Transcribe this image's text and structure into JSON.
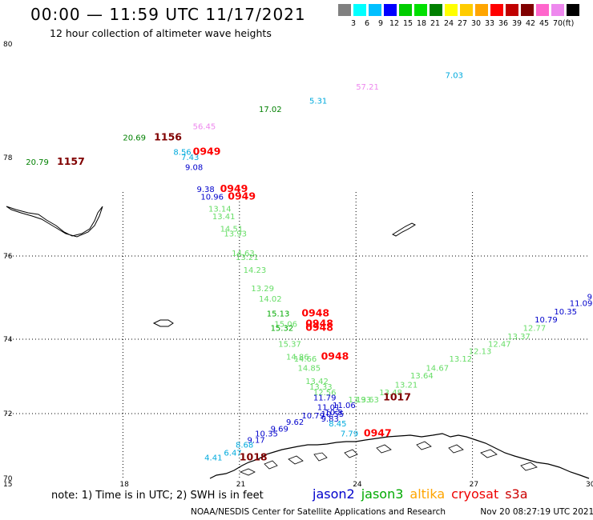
{
  "title": "00:00 — 11:59 UTC 11/17/2021",
  "subtitle": "12 hour collection of altimeter wave heights",
  "color_scale": {
    "labels": [
      "3",
      "6",
      "9",
      "12",
      "15",
      "18",
      "21",
      "24",
      "27",
      "30",
      "33",
      "36",
      "39",
      "42",
      "45",
      "70"
    ],
    "unit": "(ft)",
    "colors": [
      "#808080",
      "#00ffff",
      "#00bfff",
      "#0000ff",
      "#00cc00",
      "#00e000",
      "#008000",
      "#ffff00",
      "#ffcc00",
      "#ffa500",
      "#ff0000",
      "#c00000",
      "#800000",
      "#ff66cc",
      "#ee88ee",
      "#000000"
    ]
  },
  "axes": {
    "lon_labels": [
      "15",
      "18",
      "21",
      "24",
      "27",
      "30"
    ],
    "lat_labels": [
      "80",
      "78",
      "76",
      "74",
      "72",
      "70"
    ]
  },
  "observations": [
    {
      "text": "7.03",
      "color": "#00aadd",
      "lon": 26.3,
      "lat": 79.4
    },
    {
      "text": "57.21",
      "color": "#ee88ee",
      "lon": 24.0,
      "lat": 79.2
    },
    {
      "text": "5.31",
      "color": "#00aadd",
      "lon": 22.8,
      "lat": 78.95
    },
    {
      "text": "17.02",
      "color": "#008000",
      "lon": 21.5,
      "lat": 78.8
    },
    {
      "text": "56.45",
      "color": "#ee88ee",
      "lon": 19.8,
      "lat": 78.5
    },
    {
      "text": "20.69",
      "color": "#008000",
      "lon": 18.0,
      "lat": 78.3
    },
    {
      "text": "8.56",
      "color": "#00aadd",
      "lon": 19.3,
      "lat": 78.05
    },
    {
      "text": "7.43",
      "color": "#00aadd",
      "lon": 19.5,
      "lat": 77.95
    },
    {
      "text": "20.79",
      "color": "#008000",
      "lon": 15.5,
      "lat": 77.85
    },
    {
      "text": "9.08",
      "color": "#0000cc",
      "lon": 19.6,
      "lat": 77.75
    },
    {
      "text": "9.38",
      "color": "#0000cc",
      "lon": 19.9,
      "lat": 77.3
    },
    {
      "text": "10.96",
      "color": "#0000cc",
      "lon": 20.0,
      "lat": 77.15
    },
    {
      "text": "13.14",
      "color": "#66dd66",
      "lon": 20.2,
      "lat": 76.9
    },
    {
      "text": "13.41",
      "color": "#66dd66",
      "lon": 20.3,
      "lat": 76.75
    },
    {
      "text": "14.51",
      "color": "#66dd66",
      "lon": 20.5,
      "lat": 76.5
    },
    {
      "text": "13.93",
      "color": "#66dd66",
      "lon": 20.6,
      "lat": 76.4
    },
    {
      "text": "14.63",
      "color": "#66dd66",
      "lon": 20.8,
      "lat": 76.0
    },
    {
      "text": "13.21",
      "color": "#66dd66",
      "lon": 20.9,
      "lat": 75.9
    },
    {
      "text": "14.23",
      "color": "#66dd66",
      "lon": 21.1,
      "lat": 75.6
    },
    {
      "text": "13.29",
      "color": "#66dd66",
      "lon": 21.3,
      "lat": 75.15
    },
    {
      "text": "14.02",
      "color": "#66dd66",
      "lon": 21.5,
      "lat": 74.9
    },
    {
      "text": "15.13",
      "color": "#00aa00",
      "lon": 21.7,
      "lat": 74.55
    },
    {
      "text": "15.06",
      "color": "#66dd66",
      "lon": 21.9,
      "lat": 74.3
    },
    {
      "text": "15.32",
      "color": "#00aa00",
      "lon": 21.8,
      "lat": 74.2
    },
    {
      "text": "15.37",
      "color": "#66dd66",
      "lon": 22.0,
      "lat": 73.8
    },
    {
      "text": "14.86",
      "color": "#66dd66",
      "lon": 22.2,
      "lat": 73.45
    },
    {
      "text": "14.66",
      "color": "#66dd66",
      "lon": 22.4,
      "lat": 73.4
    },
    {
      "text": "14.85",
      "color": "#66dd66",
      "lon": 22.5,
      "lat": 73.15
    },
    {
      "text": "13.42",
      "color": "#66dd66",
      "lon": 22.7,
      "lat": 72.8
    },
    {
      "text": "13.33",
      "color": "#66dd66",
      "lon": 22.8,
      "lat": 72.65
    },
    {
      "text": "12.56",
      "color": "#66dd66",
      "lon": 22.9,
      "lat": 72.5
    },
    {
      "text": "11.79",
      "color": "#0000cc",
      "lon": 22.9,
      "lat": 72.35
    },
    {
      "text": "11.01",
      "color": "#0000cc",
      "lon": 23.0,
      "lat": 72.1
    },
    {
      "text": "11.06",
      "color": "#0000cc",
      "lon": 23.4,
      "lat": 72.15
    },
    {
      "text": "10.8",
      "color": "#0000cc",
      "lon": 23.2,
      "lat": 71.95
    },
    {
      "text": "10.55",
      "color": "#0000cc",
      "lon": 23.1,
      "lat": 71.9
    },
    {
      "text": "10.79",
      "color": "#0000cc",
      "lon": 22.6,
      "lat": 71.85
    },
    {
      "text": "9.83",
      "color": "#0000cc",
      "lon": 23.1,
      "lat": 71.75
    },
    {
      "text": "9.62",
      "color": "#0000cc",
      "lon": 22.2,
      "lat": 71.65
    },
    {
      "text": "8.45",
      "color": "#00aadd",
      "lon": 23.3,
      "lat": 71.6
    },
    {
      "text": "9.69",
      "color": "#0000cc",
      "lon": 21.8,
      "lat": 71.45
    },
    {
      "text": "10.35",
      "color": "#0000cc",
      "lon": 21.4,
      "lat": 71.3
    },
    {
      "text": "9.17",
      "color": "#0000cc",
      "lon": 21.2,
      "lat": 71.1
    },
    {
      "text": "8.68",
      "color": "#00aadd",
      "lon": 20.9,
      "lat": 70.95
    },
    {
      "text": "6.47",
      "color": "#00aadd",
      "lon": 20.6,
      "lat": 70.7
    },
    {
      "text": "4.41",
      "color": "#00aadd",
      "lon": 20.1,
      "lat": 70.55
    },
    {
      "text": "7.79",
      "color": "#00aadd",
      "lon": 23.6,
      "lat": 71.3
    },
    {
      "text": "13.93",
      "color": "#66dd66",
      "lon": 23.8,
      "lat": 72.3
    },
    {
      "text": "13.63",
      "color": "#66dd66",
      "lon": 24.0,
      "lat": 72.3
    },
    {
      "text": "13.48",
      "color": "#66dd66",
      "lon": 24.6,
      "lat": 72.5
    },
    {
      "text": "13.21",
      "color": "#66dd66",
      "lon": 25.0,
      "lat": 72.7
    },
    {
      "text": "13.64",
      "color": "#66dd66",
      "lon": 25.4,
      "lat": 72.95
    },
    {
      "text": "14.67",
      "color": "#66dd66",
      "lon": 25.8,
      "lat": 73.15
    },
    {
      "text": "13.12",
      "color": "#66dd66",
      "lon": 26.4,
      "lat": 73.4
    },
    {
      "text": "12.13",
      "color": "#66dd66",
      "lon": 26.9,
      "lat": 73.6
    },
    {
      "text": "12.47",
      "color": "#66dd66",
      "lon": 27.4,
      "lat": 73.8
    },
    {
      "text": "13.37",
      "color": "#66dd66",
      "lon": 27.9,
      "lat": 74.0
    },
    {
      "text": "12.77",
      "color": "#66dd66",
      "lon": 28.3,
      "lat": 74.2
    },
    {
      "text": "10.79",
      "color": "#0000cc",
      "lon": 28.6,
      "lat": 74.4
    },
    {
      "text": "10.35",
      "color": "#0000cc",
      "lon": 29.1,
      "lat": 74.6
    },
    {
      "text": "11.09",
      "color": "#0000cc",
      "lon": 29.5,
      "lat": 74.8
    },
    {
      "text": "9",
      "color": "#0000cc",
      "lon": 29.95,
      "lat": 74.95
    }
  ],
  "pass_times": [
    {
      "text": "1156",
      "color": "#800000",
      "lon": 18.8,
      "lat": 78.3
    },
    {
      "text": "1157",
      "color": "#800000",
      "lon": 16.3,
      "lat": 77.85
    },
    {
      "text": "0949",
      "color": "#ff0000",
      "lon": 19.8,
      "lat": 78.05
    },
    {
      "text": "0949",
      "color": "#ff0000",
      "lon": 20.5,
      "lat": 77.3
    },
    {
      "text": "0949",
      "color": "#ff0000",
      "lon": 20.7,
      "lat": 77.15
    },
    {
      "text": "0948",
      "color": "#ff0000",
      "lon": 22.6,
      "lat": 74.55
    },
    {
      "text": "0948",
      "color": "#ff0000",
      "lon": 22.7,
      "lat": 74.3
    },
    {
      "text": "0948",
      "color": "#ff0000",
      "lon": 22.7,
      "lat": 74.2
    },
    {
      "text": "0948",
      "color": "#ff0000",
      "lon": 23.1,
      "lat": 73.45
    },
    {
      "text": "1017",
      "color": "#800000",
      "lon": 24.7,
      "lat": 72.35
    },
    {
      "text": "0947",
      "color": "#ff0000",
      "lon": 24.2,
      "lat": 71.3
    },
    {
      "text": "1018",
      "color": "#800000",
      "lon": 21.0,
      "lat": 70.55
    }
  ],
  "note": "note: 1) Time is in UTC; 2) SWH is in feet",
  "satellites": [
    {
      "name": "jason2",
      "color": "#0000cc"
    },
    {
      "name": "jason3",
      "color": "#00aa00"
    },
    {
      "name": "altika",
      "color": "#ffa500"
    },
    {
      "name": "cryosat",
      "color": "#ee0000"
    },
    {
      "name": "s3a",
      "color": "#cc0000"
    }
  ],
  "footer_left": "NOAA/NESDIS Center for Satellite Applications and Research",
  "footer_right": "Nov 20 08:27:19 UTC 2021"
}
